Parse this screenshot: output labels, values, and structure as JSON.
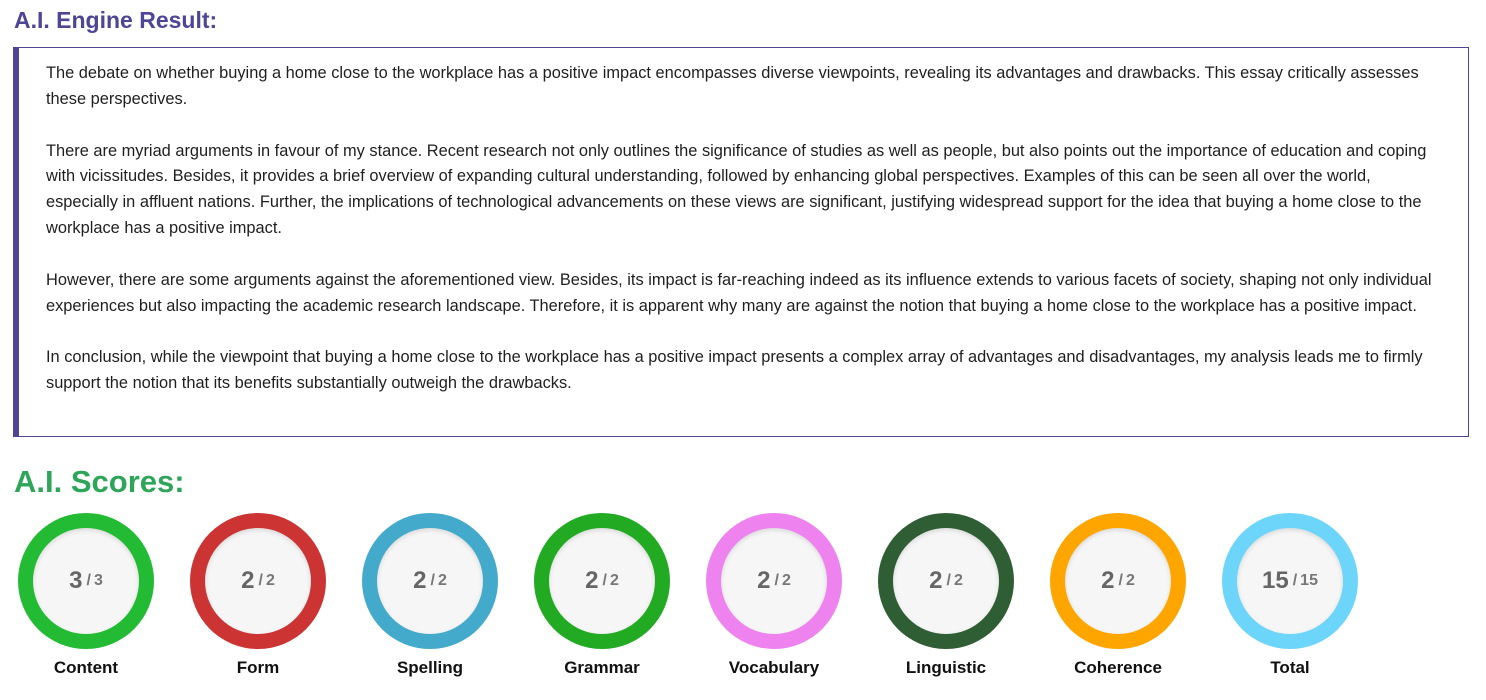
{
  "engine": {
    "title": "A.I. Engine Result:",
    "color": "#4e4596",
    "paragraphs": [
      "The debate on whether buying a home close to the workplace has a positive impact encompasses diverse viewpoints, revealing its advantages and drawbacks. This essay critically assesses these perspectives.",
      "There are myriad arguments in favour of my stance. Recent research not only outlines the significance of studies as well as people, but also points out the importance of education and coping with vicissitudes. Besides, it provides a brief overview of expanding cultural understanding, followed by enhancing global perspectives. Examples of this can be seen all over the world, especially in affluent nations. Further, the implications of technological advancements on these views are significant, justifying widespread support for the idea that buying a home close to the workplace has a positive impact.",
      "However, there are some arguments against the aforementioned view. Besides, its impact is far-reaching indeed as its influence extends to various facets of society, shaping not only individual experiences but also impacting the academic research landscape. Therefore, it is apparent why many are against the notion that buying a home close to the workplace has a positive impact.",
      "In conclusion, while the viewpoint that buying a home close to the workplace has a positive impact presents a complex array of advantages and disadvantages, my analysis leads me to firmly support the notion that its benefits substantially outweigh the drawbacks."
    ]
  },
  "scores": {
    "title": "A.I. Scores:",
    "title_color": "#2fa55a",
    "separator": "/",
    "items": [
      {
        "label": "Content",
        "score": "3",
        "max": "3",
        "color": "#22bb33"
      },
      {
        "label": "Form",
        "score": "2",
        "max": "2",
        "color": "#cc3333"
      },
      {
        "label": "Spelling",
        "score": "2",
        "max": "2",
        "color": "#44aacc"
      },
      {
        "label": "Grammar",
        "score": "2",
        "max": "2",
        "color": "#22aa22"
      },
      {
        "label": "Vocabulary",
        "score": "2",
        "max": "2",
        "color": "#ee82ee"
      },
      {
        "label": "Linguistic",
        "score": "2",
        "max": "2",
        "color": "#2f5e34"
      },
      {
        "label": "Coherence",
        "score": "2",
        "max": "2",
        "color": "#ffa500"
      },
      {
        "label": "Total",
        "score": "15",
        "max": "15",
        "color": "#6dd5fa"
      }
    ]
  }
}
